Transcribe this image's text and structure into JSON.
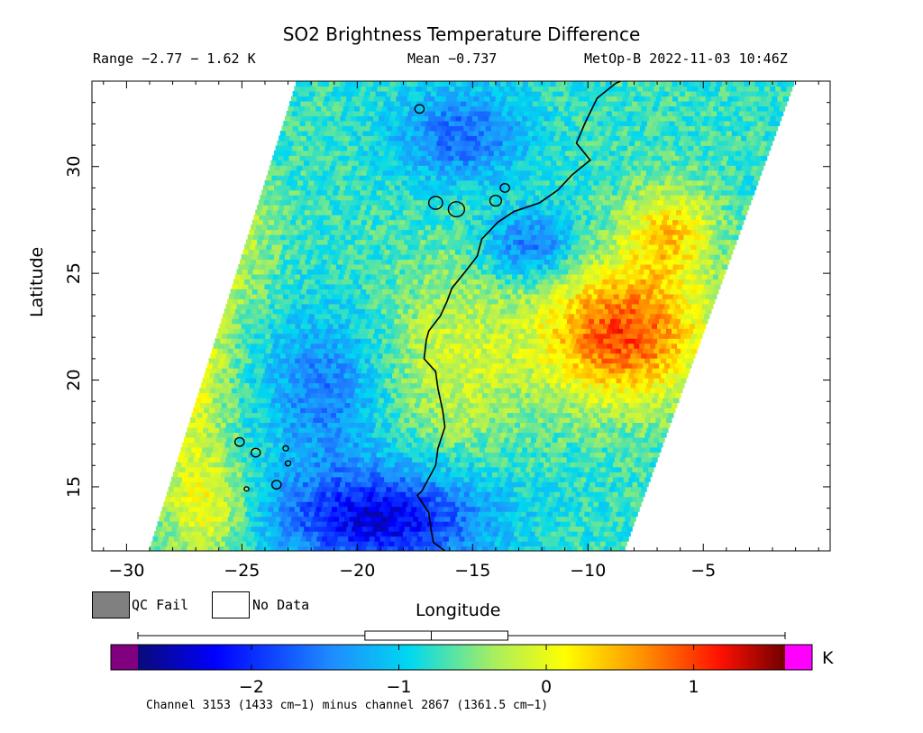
{
  "title": "SO2 Brightness Temperature Difference",
  "range_text": "Range −2.77 − 1.62 K",
  "mean_text": "Mean −0.737",
  "satellite_text": "MetOp-B 2022-11-03 10:46Z",
  "legend": {
    "qc_fail_label": "QC Fail",
    "qc_fail_color": "#808080",
    "no_data_label": "No Data",
    "no_data_color": "#ffffff"
  },
  "colorbar": {
    "unit": "K",
    "min": -2.77,
    "max": 1.62,
    "ticks": [
      -2,
      -1,
      0,
      1
    ],
    "tick_labels": [
      "−2",
      "−1",
      "0",
      "1"
    ],
    "under_color": "#800080",
    "over_color": "#ff00ff",
    "footnote": "Channel 3153 (1433 cm−1) minus channel 2867 (1361.5 cm−1)"
  },
  "boxplot": {
    "whisker_low": -2.77,
    "q1": -1.23,
    "median": -0.78,
    "q3": -0.26,
    "whisker_high": 1.62
  },
  "chart_data": {
    "type": "heatmap",
    "title": "SO2 Brightness Temperature Difference",
    "xlabel": "Longitude",
    "ylabel": "Latitude",
    "xlim": [
      -31.5,
      0.5
    ],
    "ylim": [
      12,
      34
    ],
    "xticks": [
      -30,
      -25,
      -20,
      -15,
      -10,
      -5
    ],
    "xtick_labels": [
      "−30",
      "−25",
      "−20",
      "−15",
      "−10",
      "−5"
    ],
    "yticks": [
      15,
      20,
      25,
      30
    ],
    "ytick_labels": [
      "15",
      "20",
      "25",
      "30"
    ],
    "value_range": [
      -2.77,
      1.62
    ],
    "mean": -0.737,
    "unit": "K",
    "swath_corners": [
      [
        -29.0,
        12
      ],
      [
        -8.4,
        12
      ],
      [
        -1.0,
        34
      ],
      [
        -22.6,
        34
      ]
    ],
    "features": [
      {
        "name": "positive anomaly",
        "lon": -9,
        "lat": 22,
        "value": 1.0
      },
      {
        "name": "negative anomaly",
        "lon": -18.5,
        "lat": 14,
        "value": -2.2
      },
      {
        "name": "negative anomaly",
        "lon": -15.5,
        "lat": 31.5,
        "value": -1.3
      },
      {
        "name": "negative anomaly",
        "lon": -12.5,
        "lat": 26.5,
        "value": -1.2
      }
    ],
    "coastline": [
      [
        -7.5,
        34.5
      ],
      [
        -8.8,
        33.9
      ],
      [
        -9.6,
        33.2
      ],
      [
        -10.1,
        32.1
      ],
      [
        -10.5,
        31.1
      ],
      [
        -9.9,
        30.3
      ],
      [
        -10.7,
        29.6
      ],
      [
        -11.3,
        28.9
      ],
      [
        -12.1,
        28.3
      ],
      [
        -13.2,
        27.9
      ],
      [
        -13.9,
        27.4
      ],
      [
        -14.6,
        26.6
      ],
      [
        -14.8,
        25.8
      ],
      [
        -15.3,
        25.1
      ],
      [
        -15.9,
        24.3
      ],
      [
        -16.1,
        23.7
      ],
      [
        -16.4,
        23.0
      ],
      [
        -16.9,
        22.3
      ],
      [
        -17.0,
        21.9
      ],
      [
        -17.1,
        21.0
      ],
      [
        -16.6,
        20.4
      ],
      [
        -16.5,
        19.6
      ],
      [
        -16.3,
        18.6
      ],
      [
        -16.2,
        17.8
      ],
      [
        -16.5,
        16.8
      ],
      [
        -16.6,
        16.0
      ],
      [
        -17.2,
        14.8
      ],
      [
        -17.4,
        14.6
      ],
      [
        -16.9,
        13.8
      ],
      [
        -16.8,
        13.0
      ],
      [
        -16.7,
        12.4
      ],
      [
        -16.2,
        12.0
      ]
    ],
    "islands": [
      {
        "lon": -15.7,
        "lat": 28.0,
        "r": 0.35
      },
      {
        "lon": -16.6,
        "lat": 28.3,
        "r": 0.3
      },
      {
        "lon": -14.0,
        "lat": 28.4,
        "r": 0.25
      },
      {
        "lon": -13.6,
        "lat": 29.0,
        "r": 0.2
      },
      {
        "lon": -17.3,
        "lat": 32.7,
        "r": 0.2
      },
      {
        "lon": -23.5,
        "lat": 15.1,
        "r": 0.2
      },
      {
        "lon": -24.4,
        "lat": 16.6,
        "r": 0.2
      },
      {
        "lon": -25.1,
        "lat": 17.1,
        "r": 0.2
      },
      {
        "lon": -23.0,
        "lat": 16.1,
        "r": 0.12
      },
      {
        "lon": -23.1,
        "lat": 16.8,
        "r": 0.12
      },
      {
        "lon": -24.8,
        "lat": 14.9,
        "r": 0.1
      }
    ]
  }
}
